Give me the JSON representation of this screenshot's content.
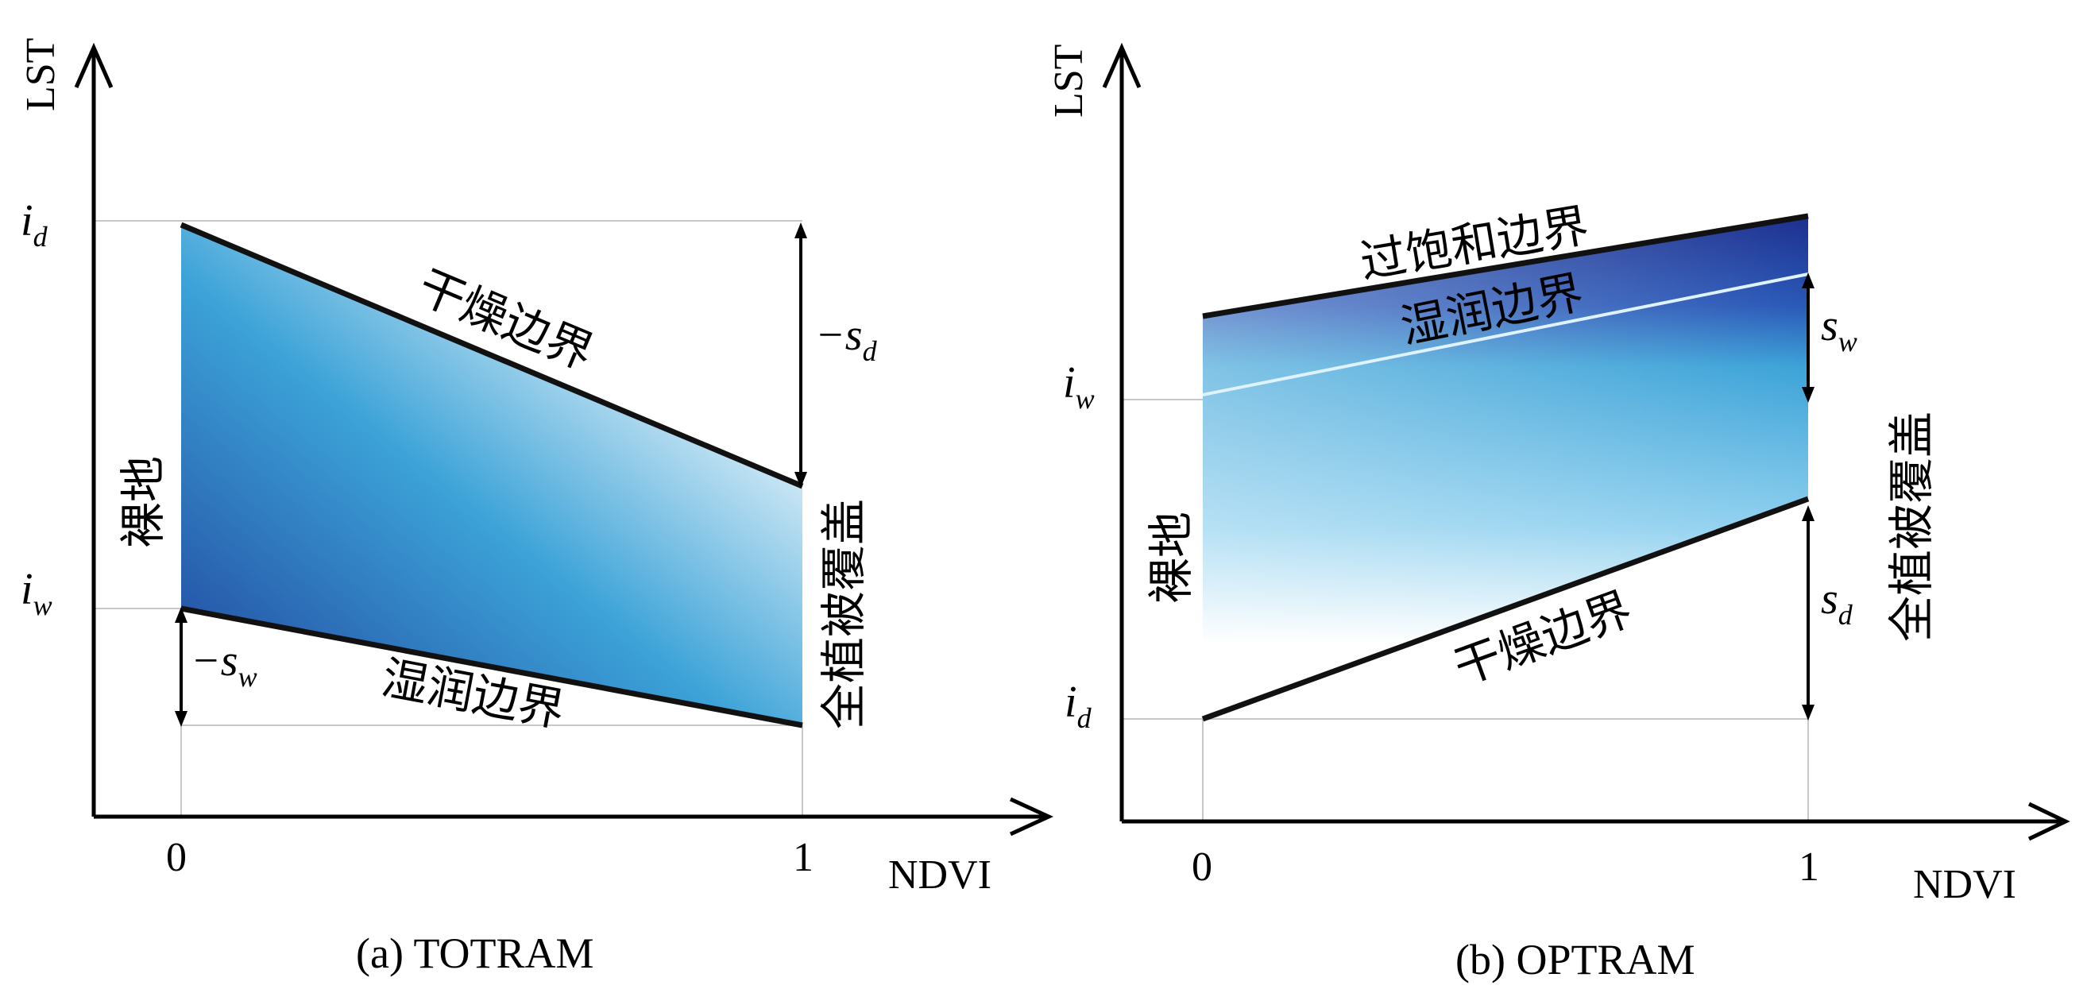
{
  "panel_a": {
    "y_axis": "LST",
    "x_axis": "NDVI",
    "tick_0": "0",
    "tick_1": "1",
    "i_d": {
      "base": "i",
      "sub": "d"
    },
    "i_w": {
      "base": "i",
      "sub": "w"
    },
    "neg_s_d": {
      "base": "−s",
      "sub": "d"
    },
    "neg_s_w": {
      "base": "−s",
      "sub": "w"
    },
    "dry_edge": "干燥边界",
    "wet_edge": "湿润边界",
    "bare_soil": "裸地",
    "full_veg": "全植被覆盖",
    "caption": "(a) TOTRAM",
    "colors": {
      "deep": "#1f3f9a",
      "mid": "#3ca3d8",
      "light": "#ffffff"
    }
  },
  "panel_b": {
    "y_axis": "LST",
    "x_axis": "NDVI",
    "tick_0": "0",
    "tick_1": "1",
    "i_w": {
      "base": "i",
      "sub": "w"
    },
    "i_d": {
      "base": "i",
      "sub": "d"
    },
    "s_w": {
      "base": "s",
      "sub": "w"
    },
    "s_d": {
      "base": "s",
      "sub": "d"
    },
    "oversat_edge": "过饱和边界",
    "wet_edge": "湿润边界",
    "dry_edge": "干燥边界",
    "bare_soil": "裸地",
    "full_veg": "全植被覆盖",
    "caption": "(b) OPTRAM",
    "colors": {
      "deep": "#1c2f8f",
      "mid": "#3ca3d8",
      "light": "#ffffff"
    }
  }
}
